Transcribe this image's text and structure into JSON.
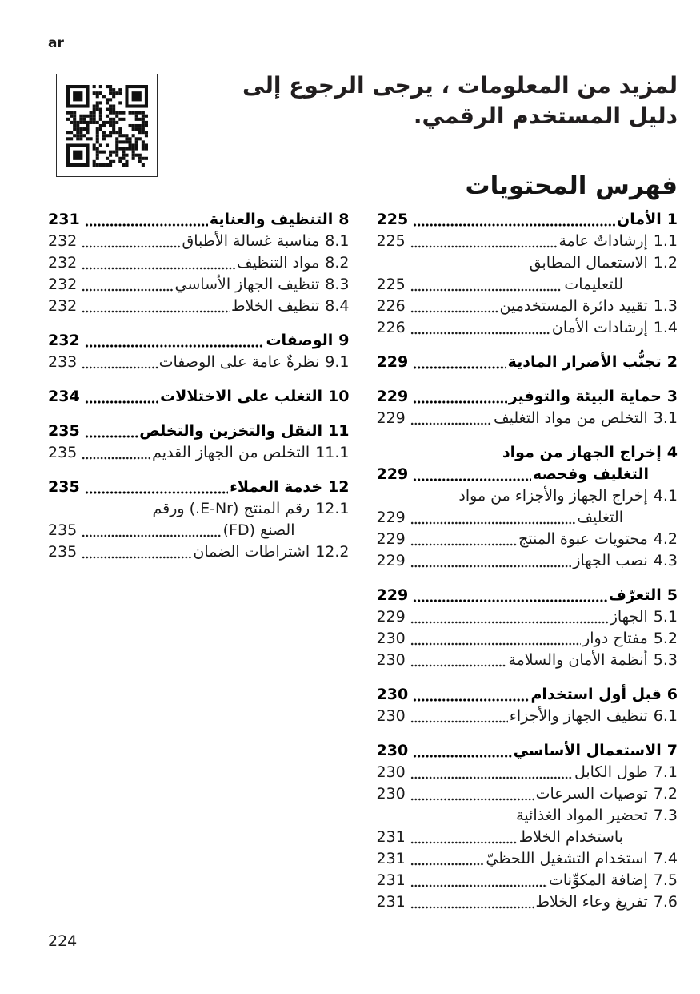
{
  "page": {
    "lang_label": "ar",
    "page_number": "224"
  },
  "colors": {
    "text": "#1a1a1a",
    "bold_text": "#000000",
    "background": "#ffffff"
  },
  "header": {
    "line1": "لمزيد من المعلومات ، يرجى الرجوع إلى",
    "line2": "دليل المستخدم الرقمي."
  },
  "qr": {
    "icon": "qr-code"
  },
  "toc": {
    "title": "فهرس المحتويات",
    "columns": [
      {
        "entries": [
          {
            "num": "1",
            "title": "الأمان",
            "page": "225",
            "bold": true
          },
          {
            "num": "1.1",
            "title": "إرشاداتٌ عامة",
            "page": "225",
            "bold": false
          },
          {
            "num": "1.2",
            "title": "الاستعمال المطابق",
            "title2": "للتعليمات",
            "page": "225",
            "bold": false
          },
          {
            "num": "1.3",
            "title": "تقييد دائرة المستخدمين",
            "page": "226",
            "bold": false
          },
          {
            "num": "1.4",
            "title": "إرشادات الأمان",
            "page": "226",
            "bold": false
          },
          {
            "num": "2",
            "title": "تجنُّب الأضرار المادية",
            "page": "229",
            "bold": true
          },
          {
            "num": "3",
            "title": "حماية البيئة والتوفير",
            "page": "229",
            "bold": true
          },
          {
            "num": "3.1",
            "title": "التخلص من مواد التغليف",
            "page": "229",
            "bold": false
          },
          {
            "num": "4",
            "title": "إخراج الجهاز من مواد",
            "title2": "التغليف وفحصه",
            "page": "229",
            "bold": true
          },
          {
            "num": "4.1",
            "title": "إخراج الجهاز والأجزاء من مواد",
            "title2": "التغليف",
            "page": "229",
            "bold": false
          },
          {
            "num": "4.2",
            "title": "محتويات عبوة المنتج",
            "page": "229",
            "bold": false
          },
          {
            "num": "4.3",
            "title": "نصب الجهاز",
            "page": "229",
            "bold": false
          },
          {
            "num": "5",
            "title": "التعرّف",
            "page": "229",
            "bold": true
          },
          {
            "num": "5.1",
            "title": "الجهاز",
            "page": "229",
            "bold": false
          },
          {
            "num": "5.2",
            "title": "مفتاح دوار",
            "page": "230",
            "bold": false
          },
          {
            "num": "5.3",
            "title": "أنظمة الأمان والسلامة",
            "page": "230",
            "bold": false
          },
          {
            "num": "6",
            "title": "قبل أول استخدام",
            "page": "230",
            "bold": true
          },
          {
            "num": "6.1",
            "title": "تنظيف الجهاز والأجزاء",
            "page": "230",
            "bold": false
          },
          {
            "num": "7",
            "title": "الاستعمال الأساسي",
            "page": "230",
            "bold": true
          },
          {
            "num": "7.1",
            "title": "طول الكابل",
            "page": "230",
            "bold": false
          },
          {
            "num": "7.2",
            "title": "توصيات السرعات",
            "page": "230",
            "bold": false
          },
          {
            "num": "7.3",
            "title": "تحضير المواد الغذائية",
            "title2": "باستخدام الخلاط",
            "page": "231",
            "bold": false
          },
          {
            "num": "7.4",
            "title": "استخدام التشغيل اللحظيّ",
            "page": "231",
            "bold": false
          },
          {
            "num": "7.5",
            "title": "إضافة المكوِّنات",
            "page": "231",
            "bold": false
          },
          {
            "num": "7.6",
            "title": "تفريغ وعاء الخلاط",
            "page": "231",
            "bold": false
          }
        ]
      },
      {
        "entries": [
          {
            "num": "8",
            "title": "التنظيف والعناية",
            "page": "231",
            "bold": true
          },
          {
            "num": "8.1",
            "title": "مناسبة غسالة الأطباق",
            "page": "232",
            "bold": false
          },
          {
            "num": "8.2",
            "title": "مواد التنظيف",
            "page": "232",
            "bold": false
          },
          {
            "num": "8.3",
            "title": "تنظيف الجهاز الأساسي",
            "page": "232",
            "bold": false
          },
          {
            "num": "8.4",
            "title": "تنظيف الخلاط",
            "page": "232",
            "bold": false
          },
          {
            "num": "9",
            "title": "الوصفات",
            "page": "232",
            "bold": true
          },
          {
            "num": "9.1",
            "title": "نظرةٌ عامة على الوصفات",
            "page": "233",
            "bold": false
          },
          {
            "num": "10",
            "title": "التغلب على الاختلالات",
            "page": "234",
            "bold": true
          },
          {
            "num": "11",
            "title": "النقل والتخزين والتخلص",
            "page": "235",
            "bold": true
          },
          {
            "num": "11.1",
            "title": "التخلص من الجهاز القديم",
            "page": "235",
            "bold": false
          },
          {
            "num": "12",
            "title": "خدمة العملاء",
            "page": "235",
            "bold": true
          },
          {
            "num": "12.1",
            "title": "رقم المنتج (E-Nr.) ورقم",
            "title2": "الصنع (FD)",
            "page": "235",
            "bold": false
          },
          {
            "num": "12.2",
            "title": "اشتراطات الضمان",
            "page": "235",
            "bold": false
          }
        ]
      }
    ]
  }
}
